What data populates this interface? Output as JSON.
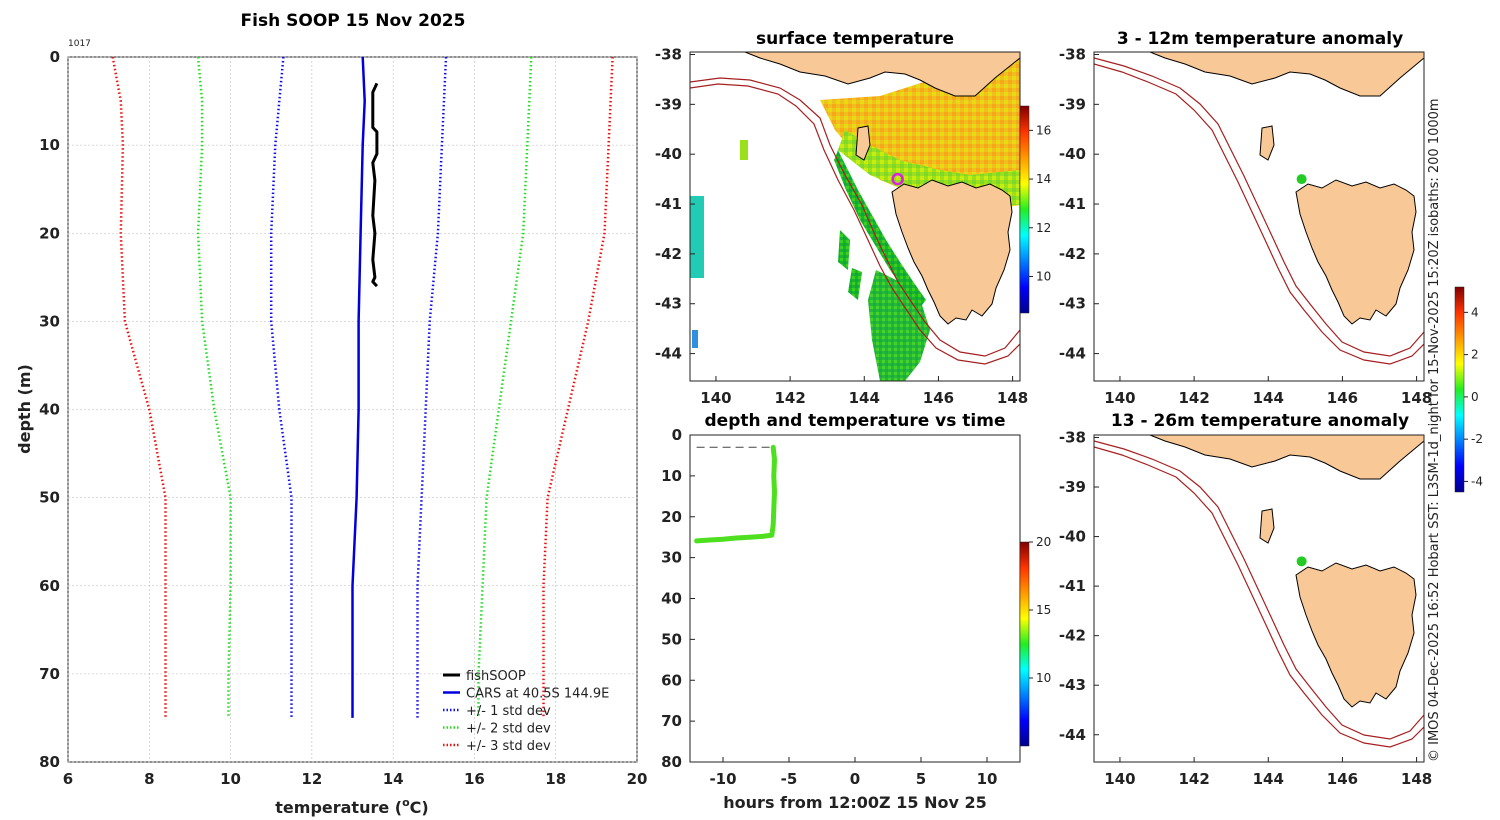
{
  "chart_data": [
    {
      "id": "profile",
      "type": "line",
      "title": "Fish SOOP 15 Nov 2025",
      "corner_label": "1017",
      "xlabel": "temperature (",
      "xlabel_sup": "o",
      "xlabel_tail": "C)",
      "ylabel": "depth (m)",
      "xlim": [
        6,
        20
      ],
      "ylim": [
        80,
        0
      ],
      "xticks": [
        6,
        8,
        10,
        12,
        14,
        16,
        18,
        20
      ],
      "yticks": [
        0,
        10,
        20,
        30,
        40,
        50,
        60,
        70,
        80
      ],
      "legend_position": "bottom-right",
      "series": [
        {
          "name": "fishSOOP",
          "color": "#000000",
          "style": "solid",
          "width": 3,
          "points": [
            [
              13.6,
              3
            ],
            [
              13.5,
              4
            ],
            [
              13.5,
              8
            ],
            [
              13.6,
              8.5
            ],
            [
              13.6,
              11
            ],
            [
              13.5,
              12
            ],
            [
              13.55,
              14
            ],
            [
              13.5,
              18
            ],
            [
              13.55,
              20
            ],
            [
              13.5,
              23
            ],
            [
              13.55,
              25
            ],
            [
              13.5,
              25.5
            ],
            [
              13.6,
              26
            ]
          ]
        },
        {
          "name": "CARS at 40.5S 144.9E",
          "color": "#0000dd",
          "style": "solid",
          "width": 2.5,
          "points": [
            [
              13.25,
              0
            ],
            [
              13.3,
              5
            ],
            [
              13.25,
              10
            ],
            [
              13.2,
              20
            ],
            [
              13.15,
              30
            ],
            [
              13.15,
              40
            ],
            [
              13.1,
              50
            ],
            [
              13.0,
              60
            ],
            [
              13.0,
              70
            ],
            [
              13.0,
              75
            ]
          ]
        },
        {
          "name": "+/- 1 std dev",
          "color": "#1010ee",
          "style": "dotted",
          "width": 2.5,
          "points": [
            [
              11.3,
              0
            ],
            [
              11.2,
              5
            ],
            [
              11.1,
              10
            ],
            [
              11.0,
              20
            ],
            [
              11.0,
              30
            ],
            [
              11.2,
              40
            ],
            [
              11.5,
              50
            ],
            [
              11.5,
              60
            ],
            [
              11.5,
              70
            ],
            [
              11.5,
              75
            ]
          ]
        },
        {
          "name": "+/- 1 std dev upper",
          "color": "#1010ee",
          "style": "dotted",
          "width": 2.5,
          "legend": false,
          "points": [
            [
              15.3,
              0
            ],
            [
              15.2,
              10
            ],
            [
              15.1,
              20
            ],
            [
              14.9,
              30
            ],
            [
              14.8,
              40
            ],
            [
              14.7,
              50
            ],
            [
              14.6,
              60
            ],
            [
              14.6,
              70
            ],
            [
              14.6,
              75
            ]
          ]
        },
        {
          "name": "+/- 2 std dev",
          "color": "#22dd22",
          "style": "dotted",
          "width": 2.5,
          "points": [
            [
              9.2,
              0
            ],
            [
              9.3,
              5
            ],
            [
              9.3,
              10
            ],
            [
              9.2,
              20
            ],
            [
              9.3,
              30
            ],
            [
              9.6,
              40
            ],
            [
              10.0,
              50
            ],
            [
              10.0,
              60
            ],
            [
              9.95,
              70
            ],
            [
              9.95,
              75
            ]
          ]
        },
        {
          "name": "+/- 2 std dev upper",
          "color": "#22dd22",
          "style": "dotted",
          "width": 2.5,
          "legend": false,
          "points": [
            [
              17.4,
              0
            ],
            [
              17.3,
              10
            ],
            [
              17.2,
              20
            ],
            [
              16.9,
              30
            ],
            [
              16.6,
              40
            ],
            [
              16.3,
              50
            ],
            [
              16.2,
              60
            ],
            [
              16.1,
              70
            ],
            [
              16.1,
              75
            ]
          ]
        },
        {
          "name": "+/- 3 std dev",
          "color": "#ee1111",
          "style": "dotted",
          "width": 2.5,
          "points": [
            [
              7.1,
              0
            ],
            [
              7.3,
              5
            ],
            [
              7.35,
              10
            ],
            [
              7.3,
              20
            ],
            [
              7.4,
              30
            ],
            [
              8.0,
              40
            ],
            [
              8.4,
              50
            ],
            [
              8.4,
              60
            ],
            [
              8.4,
              70
            ],
            [
              8.4,
              75
            ]
          ]
        },
        {
          "name": "+/- 3 std dev upper",
          "color": "#ee1111",
          "style": "dotted",
          "width": 2.5,
          "legend": false,
          "points": [
            [
              19.4,
              0
            ],
            [
              19.3,
              10
            ],
            [
              19.2,
              20
            ],
            [
              18.8,
              30
            ],
            [
              18.3,
              40
            ],
            [
              17.8,
              50
            ],
            [
              17.7,
              60
            ],
            [
              17.7,
              70
            ],
            [
              17.7,
              75
            ]
          ]
        }
      ]
    },
    {
      "id": "sst",
      "type": "heatmap",
      "title": "surface temperature",
      "xlim": [
        139.3,
        148.2
      ],
      "ylim": [
        -44.55,
        -37.95
      ],
      "xticks": [
        140,
        142,
        144,
        146,
        148
      ],
      "yticks": [
        -38,
        -39,
        -40,
        -41,
        -42,
        -43,
        -44
      ],
      "colorbar": {
        "range": [
          8.5,
          17
        ],
        "ticks": [
          10,
          12,
          14,
          16
        ]
      },
      "marker": {
        "lon": 144.9,
        "lat": -40.5,
        "color": "#e020e0"
      }
    },
    {
      "id": "dt",
      "type": "scatter",
      "title": "depth and temperature vs time",
      "xlabel": "hours from 12:00Z 15 Nov 25",
      "xlim": [
        -12.5,
        12.5
      ],
      "ylim": [
        80,
        0
      ],
      "xticks": [
        -10,
        -5,
        0,
        5,
        10
      ],
      "yticks": [
        0,
        10,
        20,
        30,
        40,
        50,
        60,
        70,
        80
      ],
      "reference_depth": 3,
      "colorbar": {
        "range": [
          5,
          20
        ],
        "ticks": [
          10,
          15,
          20
        ]
      },
      "track": [
        [
          -6.2,
          3
        ],
        [
          -6.1,
          6
        ],
        [
          -6.15,
          10
        ],
        [
          -6.1,
          14
        ],
        [
          -6.15,
          18
        ],
        [
          -6.2,
          22
        ],
        [
          -6.3,
          24.5
        ],
        [
          -7,
          24.8
        ],
        [
          -8,
          25
        ],
        [
          -9,
          25.2
        ],
        [
          -10,
          25.5
        ],
        [
          -11,
          25.7
        ],
        [
          -12,
          25.9
        ]
      ]
    },
    {
      "id": "anom1",
      "type": "heatmap",
      "title": "3 - 12m temperature anomaly",
      "xlim": [
        139.3,
        148.2
      ],
      "ylim": [
        -44.55,
        -37.95
      ],
      "xticks": [
        140,
        142,
        144,
        146,
        148
      ],
      "yticks": [
        -38,
        -39,
        -40,
        -41,
        -42,
        -43,
        -44
      ],
      "marker": {
        "lon": 144.9,
        "lat": -40.5,
        "color": "#22cc22"
      }
    },
    {
      "id": "anom2",
      "type": "heatmap",
      "title": "13 - 26m temperature anomaly",
      "xlim": [
        139.3,
        148.2
      ],
      "ylim": [
        -44.55,
        -37.95
      ],
      "xticks": [
        140,
        142,
        144,
        146,
        148
      ],
      "yticks": [
        -38,
        -39,
        -40,
        -41,
        -42,
        -43,
        -44
      ],
      "marker": {
        "lon": 144.9,
        "lat": -40.5,
        "color": "#22cc22"
      }
    },
    {
      "id": "anomcb",
      "type": "heatmap",
      "colorbar": {
        "range": [
          -4.5,
          5.2
        ],
        "ticks": [
          4,
          2,
          0,
          -2,
          -4
        ]
      }
    }
  ],
  "side_text": "© IMOS 04-Dec-2025 16:52 Hobart SST: L3SM-1d_night for 15-Nov-2025 15:20Z isobaths: 200  1000m"
}
